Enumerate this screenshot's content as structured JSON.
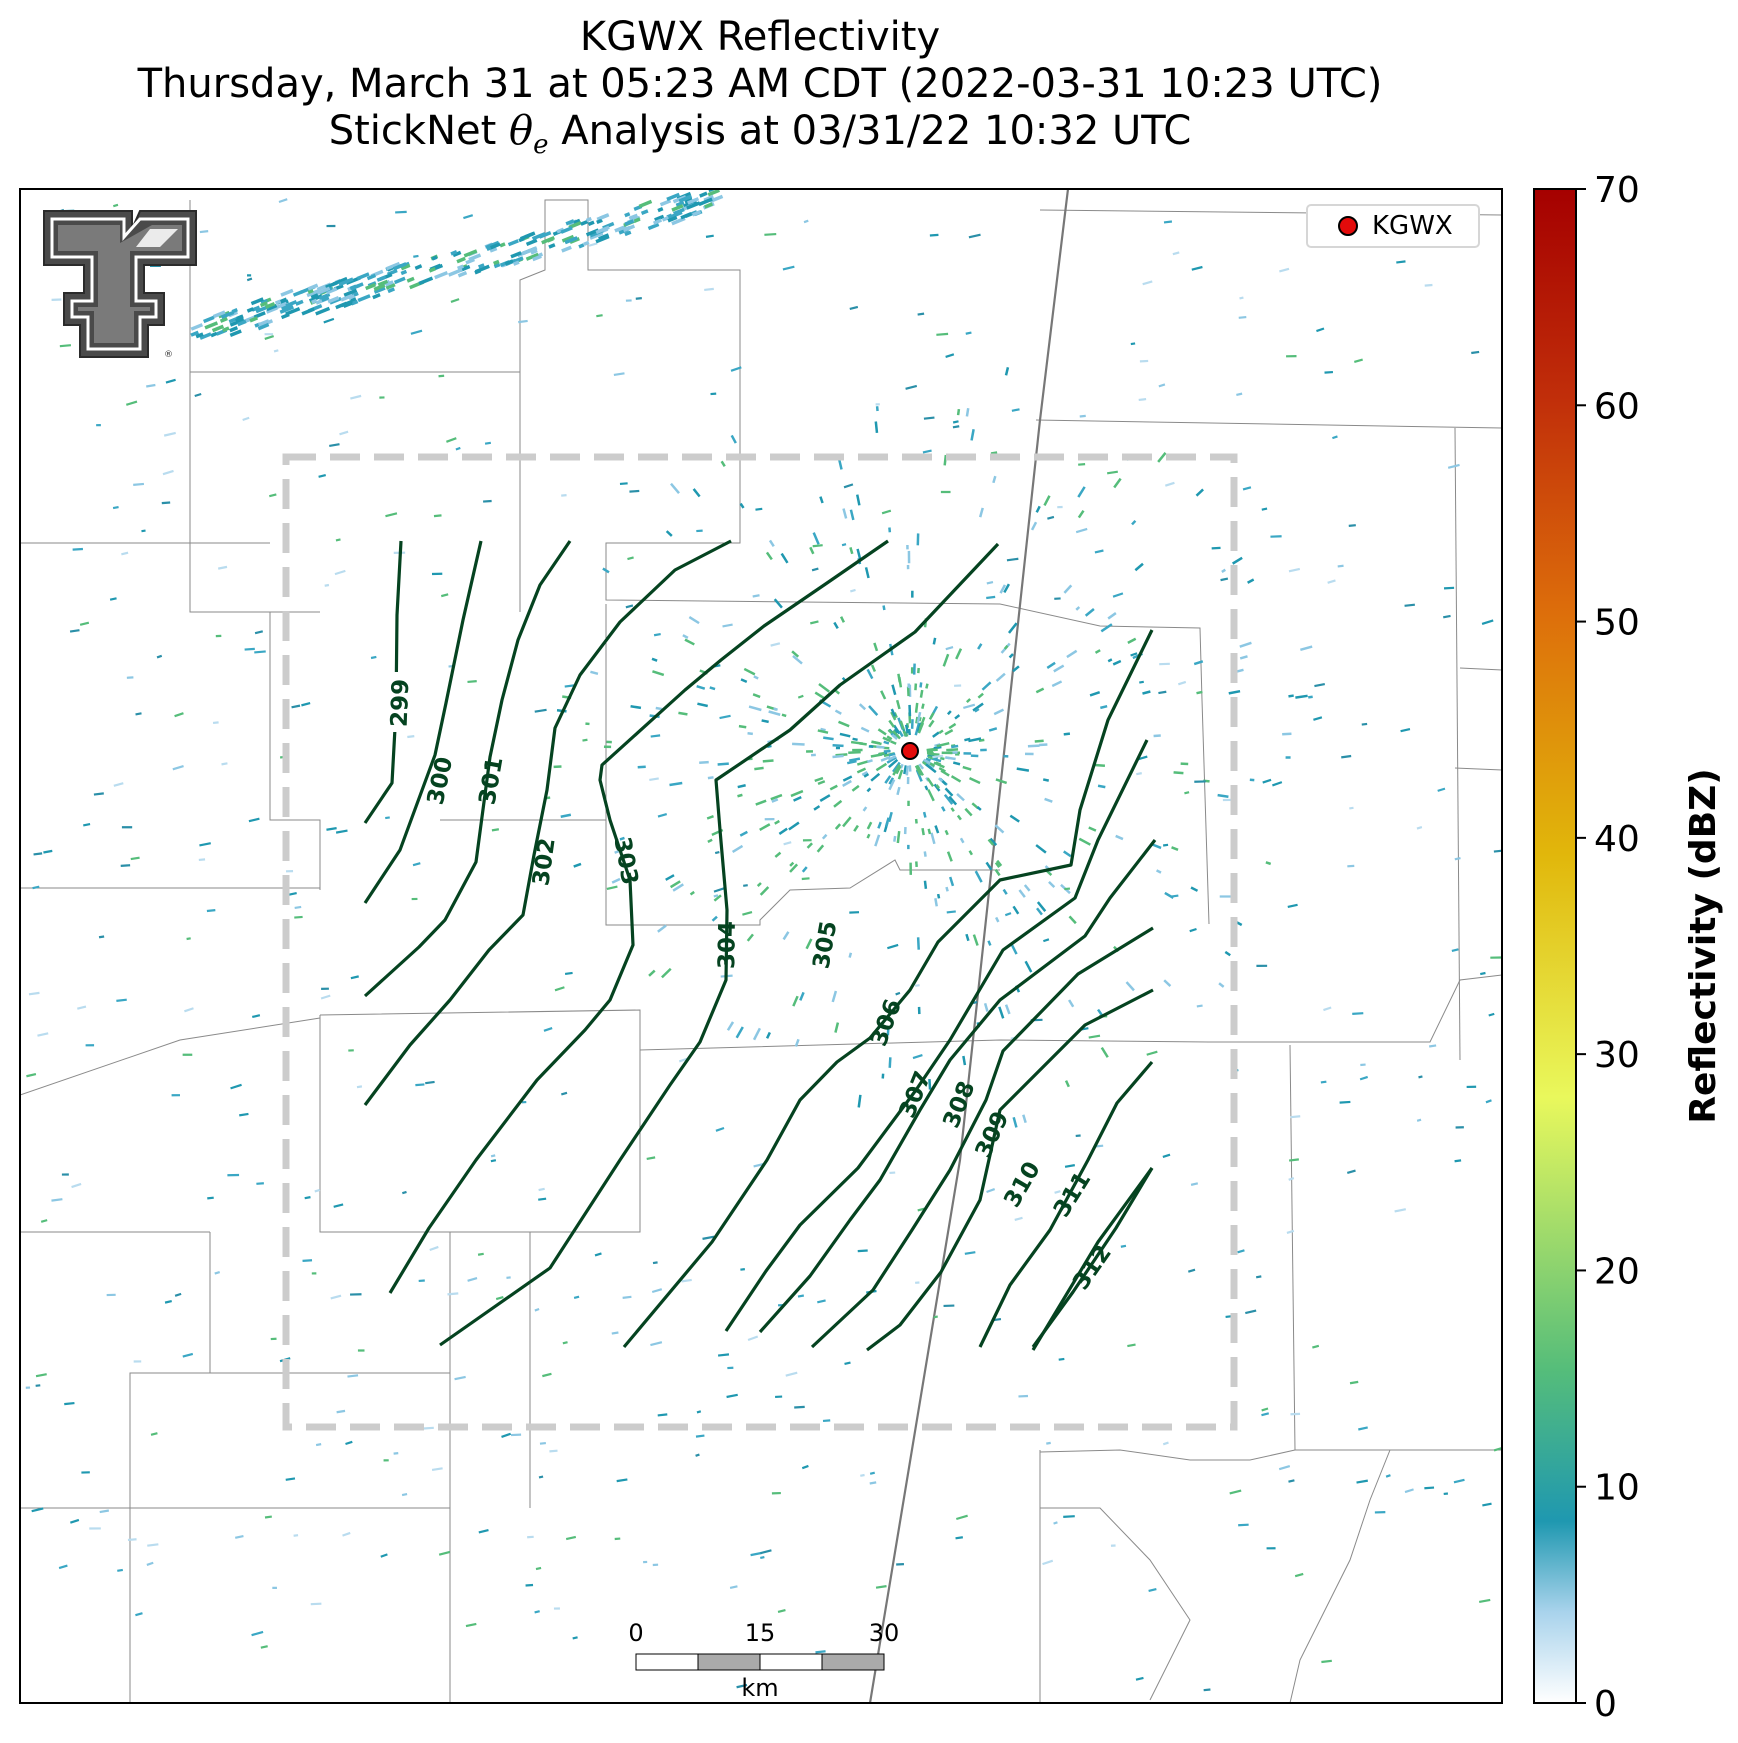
{
  "title": {
    "line1": "KGWX Reflectivity",
    "line2": "Thursday, March 31 at 05:23 AM CDT (2022-03-31 10:23 UTC)",
    "line3_pre": "StickNet ",
    "line3_theta": "θ",
    "line3_sub": "e",
    "line3_post": " Analysis at 03/31/22 10:32 UTC"
  },
  "legend": {
    "label": "KGWX",
    "marker_color": "#e30b0b"
  },
  "colorbar": {
    "label": "Reflectivity (dBZ)",
    "ticks": [
      "0",
      "10",
      "20",
      "30",
      "40",
      "50",
      "60",
      "70"
    ],
    "range": [
      0,
      70
    ],
    "colors": [
      "#ffffff",
      "#a9d3ec",
      "#1f98b0",
      "#55bd7a",
      "#e9f85c",
      "#e1b70b",
      "#dd6e0b",
      "#c12f0a",
      "#a50000"
    ]
  },
  "scale_bar": {
    "ticks": [
      "0",
      "15",
      "30"
    ],
    "unit": "km"
  },
  "contours": {
    "color": "#054320",
    "variable": "θe",
    "levels": [
      "299",
      "300",
      "301",
      "302",
      "303",
      "304",
      "305",
      "306",
      "307",
      "308",
      "309",
      "310",
      "311",
      "312"
    ]
  },
  "analysis_box": {
    "style": "dashed",
    "color": "#cccccc"
  },
  "logo": {
    "name": "Texas Tech Double T",
    "mark": "®"
  }
}
